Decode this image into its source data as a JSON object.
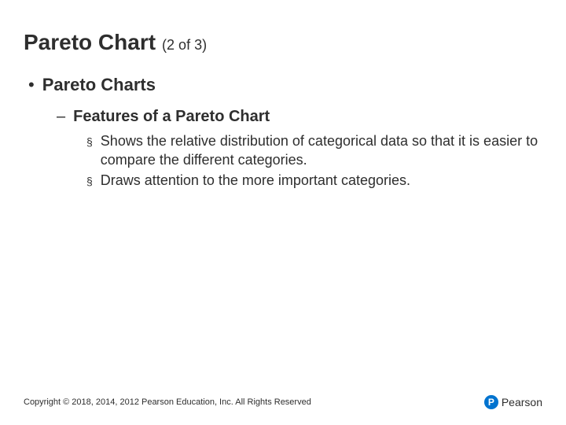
{
  "title": {
    "main": "Pareto Chart",
    "sub": "(2 of 3)"
  },
  "level1": {
    "bullet": "•",
    "text": "Pareto Charts"
  },
  "level2": {
    "bullet": "–",
    "text": "Features of a Pareto Chart"
  },
  "level3": [
    {
      "bullet": "§",
      "text": "Shows the relative distribution of categorical data so that it is easier to compare the different categories."
    },
    {
      "bullet": "§",
      "text": "Draws attention to the more important categories."
    }
  ],
  "footer": {
    "copyright": "Copyright © 2018, 2014, 2012 Pearson Education, Inc. All Rights Reserved",
    "logo_letter": "P",
    "logo_text": "Pearson"
  },
  "colors": {
    "text": "#2e2e2e",
    "background": "#ffffff",
    "logo_bg": "#0073cf"
  }
}
